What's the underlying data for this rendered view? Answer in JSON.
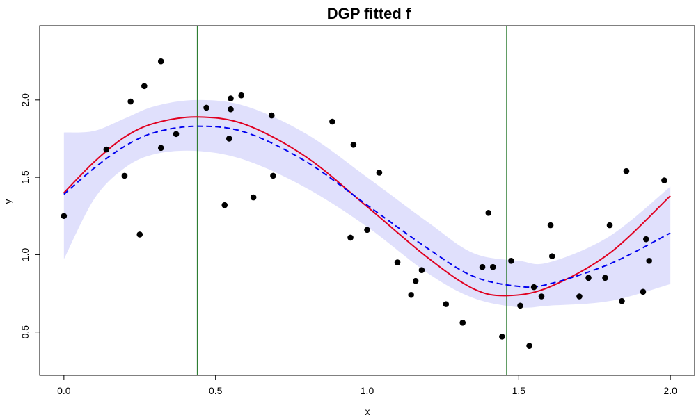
{
  "chart_data": {
    "type": "scatter",
    "title": "DGP fitted f",
    "xlabel": "x",
    "ylabel": "y",
    "xlim": [
      -0.08,
      2.08
    ],
    "ylim": [
      0.22,
      2.48
    ],
    "x_ticks": [
      0.0,
      0.5,
      1.0,
      1.5,
      2.0
    ],
    "x_tick_labels": [
      "0.0",
      "0.5",
      "1.0",
      "1.5",
      "2.0"
    ],
    "y_ticks": [
      0.5,
      1.0,
      1.5,
      2.0
    ],
    "y_tick_labels": [
      "0.5",
      "1.0",
      "1.5",
      "2.0"
    ],
    "grid": false,
    "colors": {
      "points": "#000000",
      "true_f": "#e00020",
      "fitted_mean": "#0000ee",
      "band": "#e0e0fc",
      "vlines": "#2e7d32"
    },
    "vertical_lines_x": [
      0.44,
      1.46
    ],
    "points": [
      {
        "x": 0.0,
        "y": 1.25
      },
      {
        "x": 0.14,
        "y": 1.68
      },
      {
        "x": 0.2,
        "y": 1.51
      },
      {
        "x": 0.22,
        "y": 1.99
      },
      {
        "x": 0.25,
        "y": 1.13
      },
      {
        "x": 0.265,
        "y": 2.09
      },
      {
        "x": 0.32,
        "y": 2.25
      },
      {
        "x": 0.32,
        "y": 1.69
      },
      {
        "x": 0.37,
        "y": 1.78
      },
      {
        "x": 0.47,
        "y": 1.95
      },
      {
        "x": 0.53,
        "y": 1.32
      },
      {
        "x": 0.545,
        "y": 1.75
      },
      {
        "x": 0.55,
        "y": 1.94
      },
      {
        "x": 0.55,
        "y": 2.01
      },
      {
        "x": 0.585,
        "y": 2.03
      },
      {
        "x": 0.625,
        "y": 1.37
      },
      {
        "x": 0.685,
        "y": 1.9
      },
      {
        "x": 0.69,
        "y": 1.51
      },
      {
        "x": 0.885,
        "y": 1.86
      },
      {
        "x": 0.945,
        "y": 1.11
      },
      {
        "x": 0.955,
        "y": 1.71
      },
      {
        "x": 1.0,
        "y": 1.16
      },
      {
        "x": 1.04,
        "y": 1.53
      },
      {
        "x": 1.1,
        "y": 0.95
      },
      {
        "x": 1.145,
        "y": 0.74
      },
      {
        "x": 1.16,
        "y": 0.83
      },
      {
        "x": 1.18,
        "y": 0.9
      },
      {
        "x": 1.26,
        "y": 0.68
      },
      {
        "x": 1.315,
        "y": 0.56
      },
      {
        "x": 1.38,
        "y": 0.92
      },
      {
        "x": 1.4,
        "y": 1.27
      },
      {
        "x": 1.415,
        "y": 0.92
      },
      {
        "x": 1.445,
        "y": 0.47
      },
      {
        "x": 1.475,
        "y": 0.96
      },
      {
        "x": 1.505,
        "y": 0.67
      },
      {
        "x": 1.535,
        "y": 0.41
      },
      {
        "x": 1.55,
        "y": 0.79
      },
      {
        "x": 1.575,
        "y": 0.73
      },
      {
        "x": 1.605,
        "y": 1.19
      },
      {
        "x": 1.61,
        "y": 0.99
      },
      {
        "x": 1.7,
        "y": 0.73
      },
      {
        "x": 1.73,
        "y": 0.85
      },
      {
        "x": 1.785,
        "y": 0.85
      },
      {
        "x": 1.8,
        "y": 1.19
      },
      {
        "x": 1.84,
        "y": 0.7
      },
      {
        "x": 1.855,
        "y": 1.54
      },
      {
        "x": 1.91,
        "y": 0.76
      },
      {
        "x": 1.92,
        "y": 1.1
      },
      {
        "x": 1.93,
        "y": 0.96
      },
      {
        "x": 1.98,
        "y": 1.48
      }
    ],
    "series": [
      {
        "style": "solid",
        "color": "#e00020",
        "x": [
          0.0,
          0.1,
          0.2,
          0.3,
          0.44,
          0.6,
          0.8,
          1.0,
          1.2,
          1.35,
          1.46,
          1.6,
          1.8,
          2.0
        ],
        "y": [
          1.4,
          1.6,
          1.76,
          1.85,
          1.89,
          1.84,
          1.63,
          1.31,
          0.98,
          0.78,
          0.735,
          0.79,
          1.01,
          1.38
        ]
      },
      {
        "style": "dashed",
        "color": "#0000ee",
        "x": [
          0.0,
          0.1,
          0.2,
          0.3,
          0.44,
          0.6,
          0.8,
          1.0,
          1.2,
          1.35,
          1.5,
          1.6,
          1.8,
          2.0
        ],
        "y": [
          1.39,
          1.56,
          1.7,
          1.79,
          1.83,
          1.79,
          1.6,
          1.32,
          1.04,
          0.86,
          0.795,
          0.81,
          0.94,
          1.14
        ]
      }
    ],
    "band": {
      "x": [
        0.0,
        0.1,
        0.2,
        0.3,
        0.44,
        0.6,
        0.8,
        1.0,
        1.2,
        1.35,
        1.5,
        1.6,
        1.8,
        2.0
      ],
      "lower": [
        0.97,
        1.36,
        1.56,
        1.65,
        1.67,
        1.61,
        1.43,
        1.18,
        0.88,
        0.72,
        0.66,
        0.67,
        0.7,
        0.81
      ],
      "upper": [
        1.79,
        1.8,
        1.88,
        1.96,
        2.0,
        1.96,
        1.78,
        1.5,
        1.21,
        1.01,
        0.96,
        0.95,
        1.12,
        1.44
      ]
    }
  }
}
